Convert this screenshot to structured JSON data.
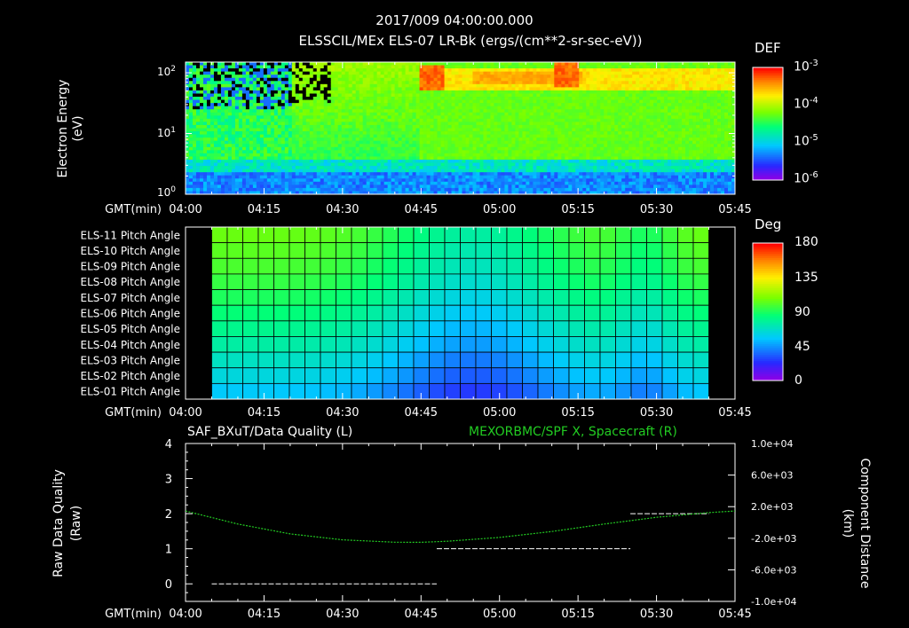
{
  "header": {
    "title": "2017/009 04:00:00.000",
    "subtitle": "ELSSCIL/MEx ELS-07 LR-Bk  (ergs/(cm**2-sr-sec-eV))"
  },
  "time_axis": {
    "label": "GMT(min)",
    "ticks": [
      "04:00",
      "04:15",
      "04:30",
      "04:45",
      "05:00",
      "05:15",
      "05:30",
      "05:45"
    ]
  },
  "colors": {
    "background": "#000000",
    "axis": "#ffffff",
    "spacecraft_line": "#22cc22",
    "quality_line": "#ffffff"
  },
  "chart_data": [
    {
      "type": "heatmap",
      "name": "energy-spectrogram",
      "ylabel": [
        "Electron Energy",
        "(eV)"
      ],
      "y_scale": "log",
      "ylim": [
        1,
        150
      ],
      "y_ticks": [
        {
          "base": "10",
          "exp": "0"
        },
        {
          "base": "10",
          "exp": "1"
        },
        {
          "base": "10",
          "exp": "2"
        }
      ],
      "x_range_min": [
        0,
        105
      ],
      "data_gap_after_min": 105,
      "colorbar": {
        "title": "DEF",
        "labels": [
          {
            "base": "10",
            "exp": "-3"
          },
          {
            "base": "10",
            "exp": "-4"
          },
          {
            "base": "10",
            "exp": "-5"
          },
          {
            "base": "10",
            "exp": "-6"
          }
        ]
      },
      "features": [
        {
          "time_min": 47,
          "energy_ev": 80,
          "note": "intensified flux ~10^-3.5"
        },
        {
          "time_min": 73,
          "energy_ev": 90,
          "note": "peak flux ~10^-3"
        }
      ]
    },
    {
      "type": "heatmap",
      "name": "pitch-angle",
      "rows": [
        "ELS-11 Pitch Angle",
        "ELS-10 Pitch Angle",
        "ELS-09 Pitch Angle",
        "ELS-08 Pitch Angle",
        "ELS-07 Pitch Angle",
        "ELS-06 Pitch Angle",
        "ELS-05 Pitch Angle",
        "ELS-04 Pitch Angle",
        "ELS-03 Pitch Angle",
        "ELS-02 Pitch Angle",
        "ELS-01 Pitch Angle"
      ],
      "x_range_min": [
        5,
        100
      ],
      "n_columns": 32,
      "colorbar": {
        "title": "Deg",
        "labels": [
          "180",
          "135",
          "90",
          "45",
          "0"
        ],
        "range": [
          0,
          180
        ]
      },
      "row_base_deg": [
        105,
        102,
        99,
        95,
        90,
        85,
        80,
        75,
        68,
        62,
        55
      ],
      "dip_center_min": 55,
      "dip_depth_deg": 30
    },
    {
      "type": "line",
      "name": "quality-and-position",
      "title_left": "SAF_BXuT/Data Quality (L)",
      "title_right": "MEXORBMC/SPF X, Spacecraft (R)",
      "ylabel_left": [
        "Raw Data Quality",
        "(Raw)"
      ],
      "ylabel_right": [
        "Component Distance",
        "(km)"
      ],
      "ylim_left": [
        -0.5,
        4
      ],
      "y_ticks_left": [
        "0",
        "1",
        "2",
        "3",
        "4"
      ],
      "ylim_right": [
        -10000,
        10000
      ],
      "y_ticks_right": [
        "1.0e+04",
        "6.0e+03",
        "2.0e+03",
        "-2.0e+03",
        "-6.0e+03",
        "-1.0e+04"
      ],
      "series": [
        {
          "name": "Data Quality",
          "axis": "left",
          "style": "dashed",
          "segments": [
            {
              "x": [
                5,
                48
              ],
              "y": 0
            },
            {
              "x": [
                48,
                85
              ],
              "y": 1
            },
            {
              "x": [
                85,
                100
              ],
              "y": 2
            }
          ]
        },
        {
          "name": "SPF X Spacecraft",
          "axis": "right",
          "style": "dotted",
          "x": [
            0,
            10,
            20,
            30,
            40,
            45,
            50,
            60,
            70,
            80,
            90,
            100,
            105
          ],
          "y": [
            1450,
            -200,
            -1450,
            -2200,
            -2500,
            -2520,
            -2380,
            -1900,
            -1150,
            -200,
            650,
            1250,
            1450
          ]
        }
      ]
    }
  ]
}
